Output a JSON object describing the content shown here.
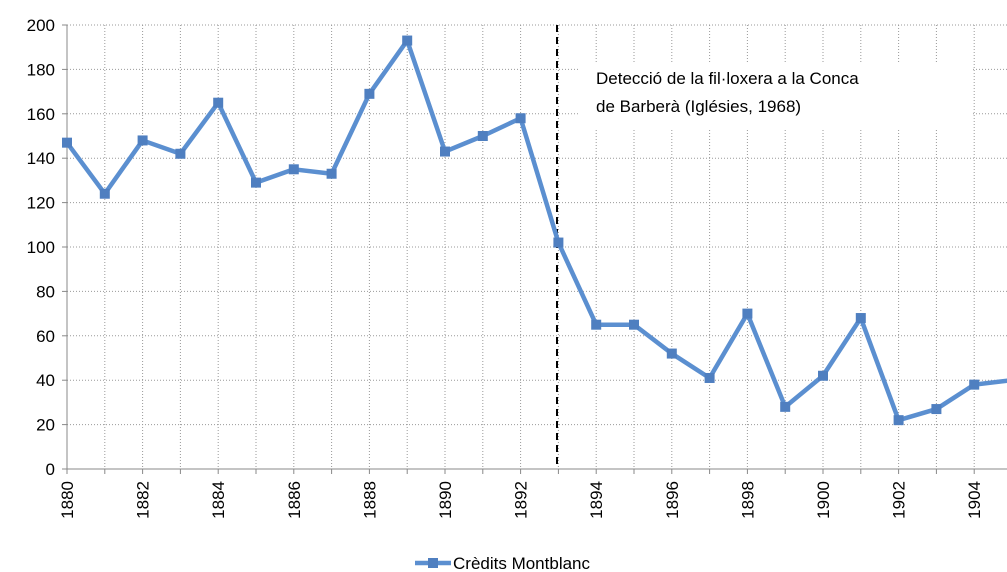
{
  "chart_data": {
    "type": "line",
    "categories": [
      "1880",
      null,
      "1882",
      null,
      "1884",
      null,
      "1886",
      null,
      "1888",
      null,
      "1890",
      null,
      "1892",
      null,
      "1894",
      null,
      "1896",
      null,
      "1898",
      null,
      "1900",
      null,
      "1902",
      null,
      "1904",
      null
    ],
    "series": [
      {
        "name": "Crèdits Montblanc",
        "color": "#5b8fd0",
        "values": [
          147,
          124,
          148,
          142,
          165,
          129,
          135,
          133,
          169,
          193,
          143,
          150,
          158,
          102,
          65,
          65,
          52,
          41,
          70,
          28,
          42,
          68,
          22,
          27,
          38,
          40
        ]
      }
    ],
    "ylim": [
      0,
      200
    ],
    "yticks": [
      0,
      20,
      40,
      60,
      80,
      100,
      120,
      140,
      160,
      180,
      200
    ],
    "grid": true,
    "annotation": [
      "Detecció de la fil·loxera a la Conca",
      "de Barberà (Iglésies, 1968)"
    ],
    "legend": "bottom"
  }
}
